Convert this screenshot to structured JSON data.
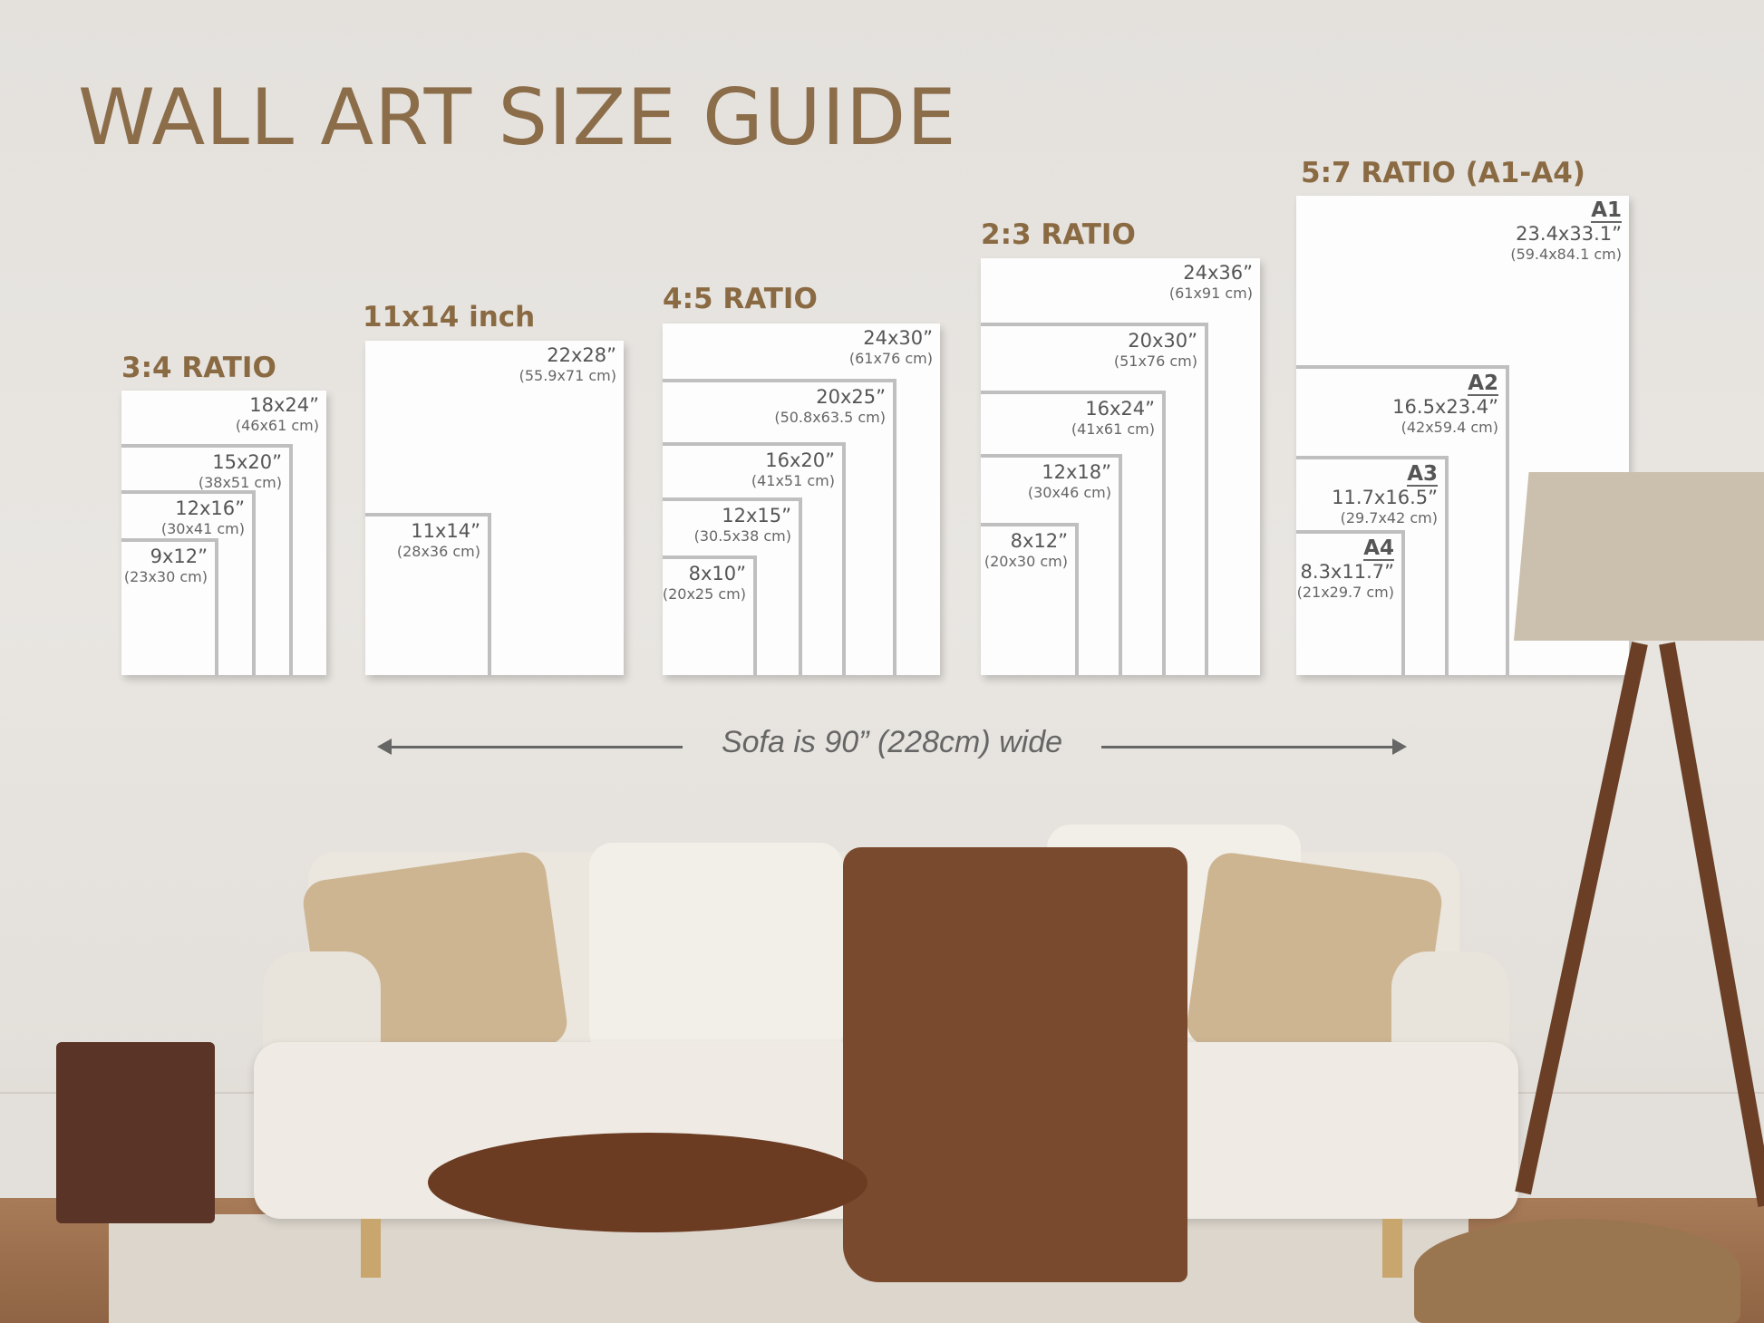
{
  "title": "WALL ART SIZE GUIDE",
  "groups": [
    {
      "label": "3:4 RATIO",
      "sizes": [
        {
          "inch": "18x24”",
          "cm": "(46x61 cm)"
        },
        {
          "inch": "15x20”",
          "cm": "(38x51 cm)"
        },
        {
          "inch": "12x16”",
          "cm": "(30x41 cm)"
        },
        {
          "inch": "9x12”",
          "cm": "(23x30 cm)"
        }
      ]
    },
    {
      "label": "11x14 inch",
      "sizes": [
        {
          "inch": "22x28”",
          "cm": "(55.9x71 cm)"
        },
        {
          "inch": "11x14”",
          "cm": "(28x36 cm)"
        }
      ]
    },
    {
      "label": "4:5 RATIO",
      "sizes": [
        {
          "inch": "24x30”",
          "cm": "(61x76 cm)"
        },
        {
          "inch": "20x25”",
          "cm": "(50.8x63.5 cm)"
        },
        {
          "inch": "16x20”",
          "cm": "(41x51 cm)"
        },
        {
          "inch": "12x15”",
          "cm": "(30.5x38 cm)"
        },
        {
          "inch": "8x10”",
          "cm": "(20x25 cm)"
        }
      ]
    },
    {
      "label": "2:3 RATIO",
      "sizes": [
        {
          "inch": "24x36”",
          "cm": "(61x91 cm)"
        },
        {
          "inch": "20x30”",
          "cm": "(51x76 cm)"
        },
        {
          "inch": "16x24”",
          "cm": "(41x61 cm)"
        },
        {
          "inch": "12x18”",
          "cm": "(30x46 cm)"
        },
        {
          "inch": "8x12”",
          "cm": "(20x30 cm)"
        }
      ]
    },
    {
      "label": "5:7 RATIO (A1-A4)",
      "sizes": [
        {
          "name": "A1",
          "inch": "23.4x33.1”",
          "cm": "(59.4x84.1 cm)"
        },
        {
          "name": "A2",
          "inch": "16.5x23.4”",
          "cm": "(42x59.4 cm)"
        },
        {
          "name": "A3",
          "inch": "11.7x16.5”",
          "cm": "(29.7x42 cm)"
        },
        {
          "name": "A4",
          "inch": "8.3x11.7”",
          "cm": "(21x29.7 cm)"
        }
      ]
    }
  ],
  "sofa_note": "Sofa is 90” (228cm) wide",
  "colors": {
    "heading": "#8c6d4a",
    "wall": "#e6e3df",
    "board": "#fdfdfd",
    "divider": "#bfbfbf"
  }
}
